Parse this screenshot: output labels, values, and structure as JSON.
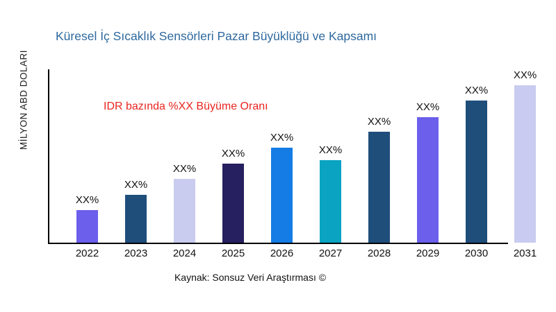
{
  "chart_data": {
    "type": "bar",
    "title": "Küresel İç Sıcaklık Sensörleri Pazar Büyüklüğü ve Kapsamı",
    "title_color": "#2E689E",
    "annotation": "IDR bazında %XX Büyüme Oranı",
    "annotation_color": "#E8251F",
    "ylabel": "MİLYON ABD DOLARI",
    "xlabel": "",
    "source": "Kaynak: Sonsuz Veri Araştırması ©",
    "categories": [
      "2022",
      "2023",
      "2024",
      "2025",
      "2026",
      "2027",
      "2028",
      "2029",
      "2030",
      "2031"
    ],
    "values": [
      47,
      69,
      92,
      114,
      137,
      119,
      160,
      181,
      205,
      228
    ],
    "bar_labels": [
      "XX%",
      "XX%",
      "XX%",
      "XX%",
      "XX%",
      "XX%",
      "XX%",
      "XX%",
      "XX%",
      "XX%"
    ],
    "bar_colors": [
      "#6B5FEC",
      "#1F4E7B",
      "#C9CBEF",
      "#262060",
      "#147CE4",
      "#0AA3C2",
      "#1F4E7B",
      "#6B5FEC",
      "#1F4E7B",
      "#C9CBF0"
    ],
    "ylim": [
      0,
      250
    ],
    "grid": false,
    "legend": false,
    "axis_color": "#000000"
  }
}
